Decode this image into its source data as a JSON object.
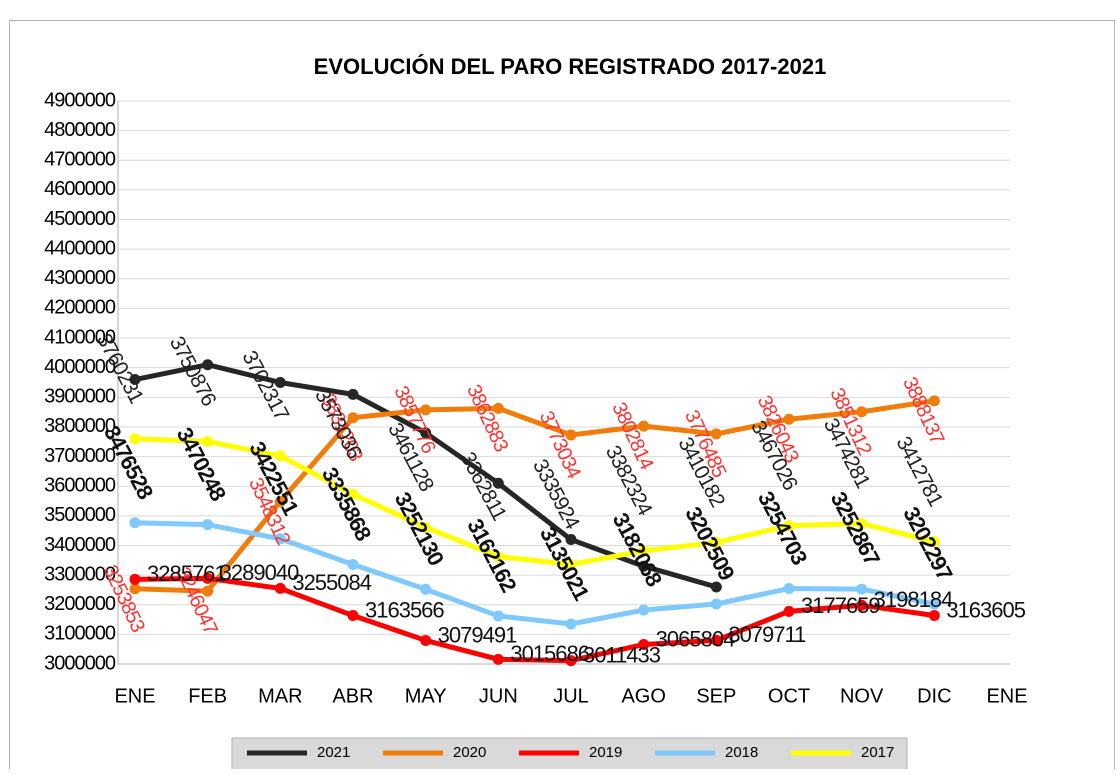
{
  "chart_data": {
    "type": "line",
    "title": "EVOLUCIÓN DEL PARO REGISTRADO 2017-2021",
    "categories": [
      "ENE",
      "FEB",
      "MAR",
      "ABR",
      "MAY",
      "JUN",
      "JUL",
      "AGO",
      "SEP",
      "OCT",
      "NOV",
      "DIC",
      "ENE"
    ],
    "series": [
      {
        "name": "2021",
        "color": "#262626",
        "values": [
          3960000,
          4010000,
          3950000,
          3910000,
          3780000,
          3610000,
          3420000,
          3330000,
          3260000,
          null,
          null,
          null,
          null
        ]
      },
      {
        "name": "2020",
        "color": "#f07d0a",
        "values": [
          3253853,
          3246047,
          3548312,
          3831203,
          3857776,
          3862883,
          3773034,
          3802814,
          3776485,
          3826043,
          3851312,
          3888137,
          null
        ]
      },
      {
        "name": "2019",
        "color": "#ff0000",
        "values": [
          3285761,
          3289040,
          3255084,
          3163566,
          3079491,
          3015686,
          3011433,
          3065804,
          3079711,
          3177659,
          3198184,
          3163605,
          null
        ]
      },
      {
        "name": "2018",
        "color": "#7fc9ff",
        "values": [
          3476528,
          3470248,
          3422551,
          3335868,
          3252130,
          3162162,
          3135021,
          3182068,
          3202509,
          3254703,
          3252867,
          3202297,
          null
        ]
      },
      {
        "name": "2017",
        "color": "#ffff00",
        "values": [
          3760231,
          3750876,
          3702317,
          3573036,
          3461128,
          3362811,
          3335924,
          3382324,
          3410182,
          3467026,
          3474281,
          3412781,
          null
        ]
      }
    ],
    "ylim": [
      3000000,
      4900000
    ],
    "yticks": [
      3000000,
      3100000,
      3200000,
      3300000,
      3400000,
      3500000,
      3600000,
      3700000,
      3800000,
      3900000,
      4000000,
      4100000,
      4200000,
      4300000,
      4400000,
      4500000,
      4600000,
      4700000,
      4800000,
      4900000
    ],
    "grid": true,
    "legend": "bottom"
  }
}
